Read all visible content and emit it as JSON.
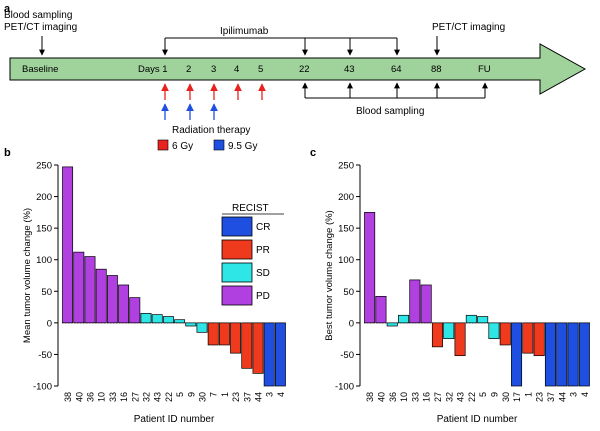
{
  "panel_a": {
    "label": "a",
    "top_left_line1": "Blood sampling",
    "top_left_line2": "PET/CT imaging",
    "ipilimumab": "Ipilimumab",
    "pet_ct_right": "PET/CT imaging",
    "timeline": [
      "Baseline",
      "Days 1",
      "2",
      "3",
      "4",
      "5",
      "22",
      "43",
      "64",
      "88",
      "FU"
    ],
    "blood_sampling": "Blood sampling",
    "radiation_title": "Radiation therapy",
    "legend": [
      {
        "label": "6 Gy",
        "color": "#e8221f"
      },
      {
        "label": "9.5 Gy",
        "color": "#1f4fe0"
      }
    ],
    "arrow_color": "#9fd39b"
  },
  "recist": {
    "title": "RECIST",
    "items": [
      {
        "code": "CR",
        "color": "#1f4fe0"
      },
      {
        "code": "PR",
        "color": "#f03a1e"
      },
      {
        "code": "SD",
        "color": "#2ee6e6"
      },
      {
        "code": "PD",
        "color": "#b040e0"
      }
    ]
  },
  "chart_data": [
    {
      "type": "bar",
      "label": "b",
      "ylabel": "Mean tumor volume change (%)",
      "xlabel": "Patient ID number",
      "ylim": [
        -100,
        250
      ],
      "yticks": [
        -100,
        -50,
        0,
        50,
        100,
        150,
        200,
        250
      ],
      "categories": [
        "38",
        "40",
        "36",
        "10",
        "33",
        "16",
        "27",
        "32",
        "43",
        "22",
        "5",
        "9",
        "30",
        "7",
        "1",
        "23",
        "37",
        "44",
        "3",
        "4"
      ],
      "values": [
        247,
        112,
        105,
        85,
        75,
        60,
        40,
        15,
        13,
        10,
        5,
        -5,
        -15,
        -35,
        -35,
        -48,
        -72,
        -80,
        -100,
        -100
      ],
      "recist": [
        "PD",
        "PD",
        "PD",
        "PD",
        "PD",
        "PD",
        "PD",
        "SD",
        "SD",
        "SD",
        "SD",
        "SD",
        "SD",
        "PR",
        "PR",
        "PR",
        "PR",
        "PR",
        "CR",
        "CR"
      ]
    },
    {
      "type": "bar",
      "label": "c",
      "ylabel": "Best tumor volume change (%)",
      "xlabel": "Patient ID number",
      "ylim": [
        -100,
        250
      ],
      "yticks": [
        -100,
        -50,
        0,
        50,
        100,
        150,
        200,
        250
      ],
      "categories": [
        "38",
        "40",
        "36",
        "10",
        "33",
        "16",
        "27",
        "32",
        "43",
        "22",
        "5",
        "9",
        "30",
        "17",
        "1",
        "23",
        "37",
        "44",
        "3",
        "4"
      ],
      "values": [
        175,
        42,
        -5,
        12,
        68,
        60,
        -38,
        -25,
        -52,
        12,
        10,
        -25,
        -35,
        -100,
        -48,
        -52,
        -100,
        -100,
        -100,
        -100
      ],
      "recist": [
        "PD",
        "PD",
        "SD",
        "SD",
        "PD",
        "PD",
        "PR",
        "SD",
        "PR",
        "SD",
        "SD",
        "SD",
        "PR",
        "CR",
        "PR",
        "PR",
        "CR",
        "CR",
        "CR",
        "CR"
      ]
    }
  ]
}
